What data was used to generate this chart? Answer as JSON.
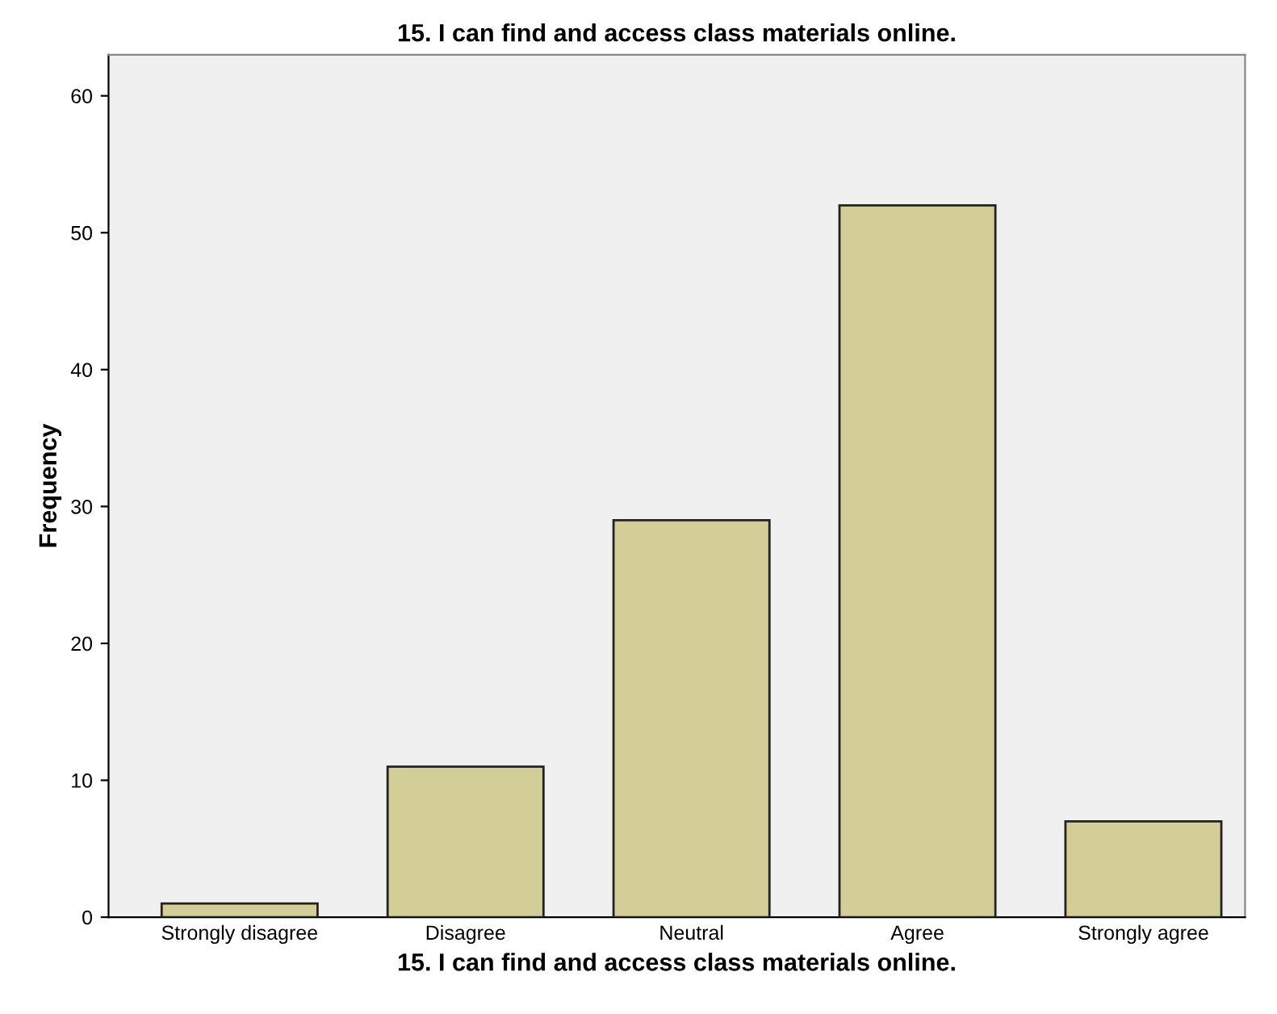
{
  "chart_data": {
    "type": "bar",
    "title": "15. I can find and access class materials online.",
    "xlabel": "15. I can find and access class materials online.",
    "ylabel": "Frequency",
    "categories": [
      "Strongly disagree",
      "Disagree",
      "Neutral",
      "Agree",
      "Strongly agree"
    ],
    "values": [
      1,
      11,
      29,
      52,
      7
    ],
    "color": "#d3ce97",
    "ylim": [
      0,
      63
    ],
    "yticks": [
      0,
      10,
      20,
      30,
      40,
      50,
      60
    ],
    "grid": false
  }
}
